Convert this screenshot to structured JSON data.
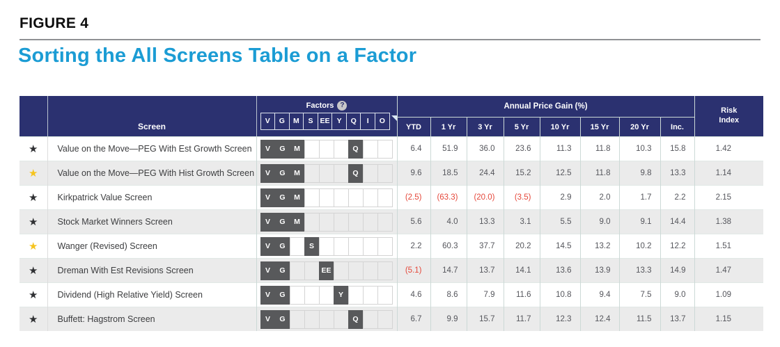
{
  "figure": {
    "label": "FIGURE 4",
    "title": "Sorting the All Screens Table on a Factor"
  },
  "icons": {
    "star": "★",
    "help": "?"
  },
  "colors": {
    "header_navy": "#2b3170",
    "title_blue": "#1b9cd4",
    "factor_active_gray": "#58595b",
    "negative_red": "#e5473a",
    "row_alt_gray": "#ebebeb",
    "star_yellow": "#f6c41e",
    "star_black": "#2f3033"
  },
  "table": {
    "screen_header": "Screen",
    "factors_label": "Factors",
    "factor_columns": [
      "V",
      "G",
      "M",
      "S",
      "EE",
      "Y",
      "Q",
      "I",
      "O"
    ],
    "gain_header": "Annual Price Gain (%)",
    "gain_columns": [
      "YTD",
      "1 Yr",
      "3 Yr",
      "5 Yr",
      "10 Yr",
      "15 Yr",
      "20 Yr",
      "Inc."
    ],
    "risk_header": "Risk\nIndex",
    "rows": [
      {
        "star": "black",
        "name": "Value on the Move—PEG With Est Growth Screen",
        "factors": [
          "V",
          "G",
          "M",
          "Q"
        ],
        "values": [
          "6.4",
          "51.9",
          "36.0",
          "23.6",
          "11.3",
          "11.8",
          "10.3",
          "15.8"
        ],
        "risk": "1.42"
      },
      {
        "star": "yellow",
        "name": "Value on the Move—PEG With Hist Growth Screen",
        "factors": [
          "V",
          "G",
          "M",
          "Q"
        ],
        "values": [
          "9.6",
          "18.5",
          "24.4",
          "15.2",
          "12.5",
          "11.8",
          "9.8",
          "13.3"
        ],
        "risk": "1.14"
      },
      {
        "star": "black",
        "name": "Kirkpatrick Value Screen",
        "factors": [
          "V",
          "G",
          "M"
        ],
        "values": [
          "(2.5)",
          "(63.3)",
          "(20.0)",
          "(3.5)",
          "2.9",
          "2.0",
          "1.7",
          "2.2"
        ],
        "risk": "2.15"
      },
      {
        "star": "black",
        "name": "Stock Market Winners Screen",
        "factors": [
          "V",
          "G",
          "M"
        ],
        "values": [
          "5.6",
          "4.0",
          "13.3",
          "3.1",
          "5.5",
          "9.0",
          "9.1",
          "14.4"
        ],
        "risk": "1.38"
      },
      {
        "star": "yellow",
        "name": "Wanger (Revised) Screen",
        "factors": [
          "V",
          "G",
          "S"
        ],
        "values": [
          "2.2",
          "60.3",
          "37.7",
          "20.2",
          "14.5",
          "13.2",
          "10.2",
          "12.2"
        ],
        "risk": "1.51"
      },
      {
        "star": "black",
        "name": "Dreman With Est Revisions Screen",
        "factors": [
          "V",
          "G",
          "EE"
        ],
        "values": [
          "(5.1)",
          "14.7",
          "13.7",
          "14.1",
          "13.6",
          "13.9",
          "13.3",
          "14.9"
        ],
        "risk": "1.47"
      },
      {
        "star": "black",
        "name": "Dividend (High Relative Yield) Screen",
        "factors": [
          "V",
          "G",
          "Y"
        ],
        "values": [
          "4.6",
          "8.6",
          "7.9",
          "11.6",
          "10.8",
          "9.4",
          "7.5",
          "9.0"
        ],
        "risk": "1.09"
      },
      {
        "star": "black",
        "name": "Buffett: Hagstrom Screen",
        "factors": [
          "V",
          "G",
          "Q"
        ],
        "values": [
          "6.7",
          "9.9",
          "15.7",
          "11.7",
          "12.3",
          "12.4",
          "11.5",
          "13.7"
        ],
        "risk": "1.15"
      }
    ]
  }
}
